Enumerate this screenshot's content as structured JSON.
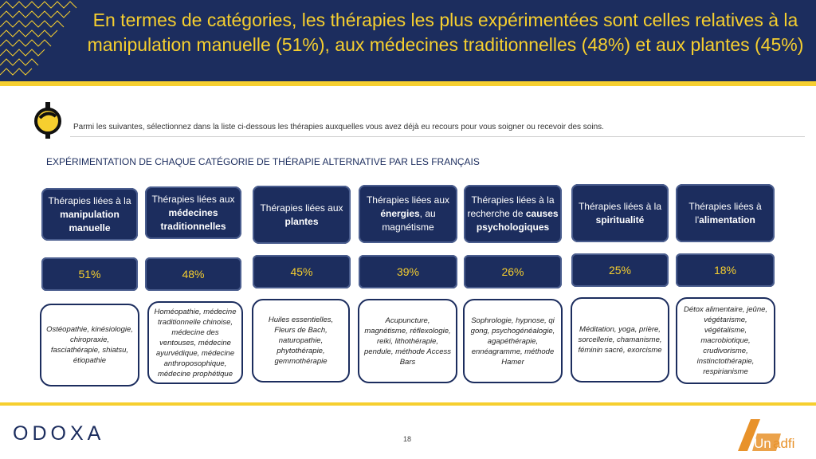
{
  "header": {
    "title_line1": "En termes de catégories, les thérapies les plus expérimentées sont celles relatives à la",
    "title_line2": "manipulation manuelle (51%), aux médecines traditionnelles (48%) et aux plantes (45%)"
  },
  "question": "Parmi les suivantes, sélectionnez dans la liste ci-dessous les thérapies auxquelles vous avez déjà eu recours pour vous soigner ou recevoir des soins.",
  "section_title": "EXPÉRIMENTATION DE CHAQUE CATÉGORIE DE THÉRAPIE ALTERNATIVE PAR LES FRANÇAIS",
  "categories": [
    {
      "pre": "Thérapies liées à la ",
      "bold": "manipulation manuelle",
      "post": "",
      "pct": "51%",
      "desc": "Ostéopathie, kinésiologie, chiropraxie, fasciathérapie, shiatsu, étiopathie"
    },
    {
      "pre": "Thérapies liées aux ",
      "bold": "médecines traditionnelles",
      "post": "",
      "pct": "48%",
      "desc": "Homéopathie, médecine traditionnelle chinoise, médecine des ventouses, médecine ayurvédique, médecine anthroposophique, médecine prophétique"
    },
    {
      "pre": "Thérapies liées aux ",
      "bold": "plantes",
      "post": "",
      "pct": "45%",
      "desc": "Huiles essentielles, Fleurs de Bach, naturopathie, phytothérapie, gemmothérapie"
    },
    {
      "pre": "Thérapies liées aux ",
      "bold": "énergies",
      "post": ", au magnétisme",
      "pct": "39%",
      "desc": "Acupuncture, magnétisme, réflexologie, reiki, lithothérapie, pendule, méthode Access Bars"
    },
    {
      "pre": "Thérapies liées à la recherche de ",
      "bold": "causes psychologiques",
      "post": "",
      "pct": "26%",
      "desc": "Sophrologie, hypnose, qi gong, psychogénéalogie, agapéthérapie, ennéagramme, méthode Hamer"
    },
    {
      "pre": "Thérapies liées à la ",
      "bold": "spiritualité",
      "post": "",
      "pct": "25%",
      "desc": "Méditation, yoga, prière, sorcellerie, chamanisme, féminin sacré, exorcisme"
    },
    {
      "pre": "Thérapies liées à l'",
      "bold": "alimentation",
      "post": "",
      "pct": "18%",
      "desc": "Détox alimentaire, jeûne, végétarisme, végétalisme, macrobiotique, crudivorisme, instinctothérapie, respirianisme"
    }
  ],
  "footer": {
    "brand_left": "ODOXA",
    "page_number": "18",
    "brand_right": "Unadfi"
  },
  "colors": {
    "navy": "#1c2d5e",
    "yellow": "#f6cf2f",
    "orange": "#e8922a"
  }
}
